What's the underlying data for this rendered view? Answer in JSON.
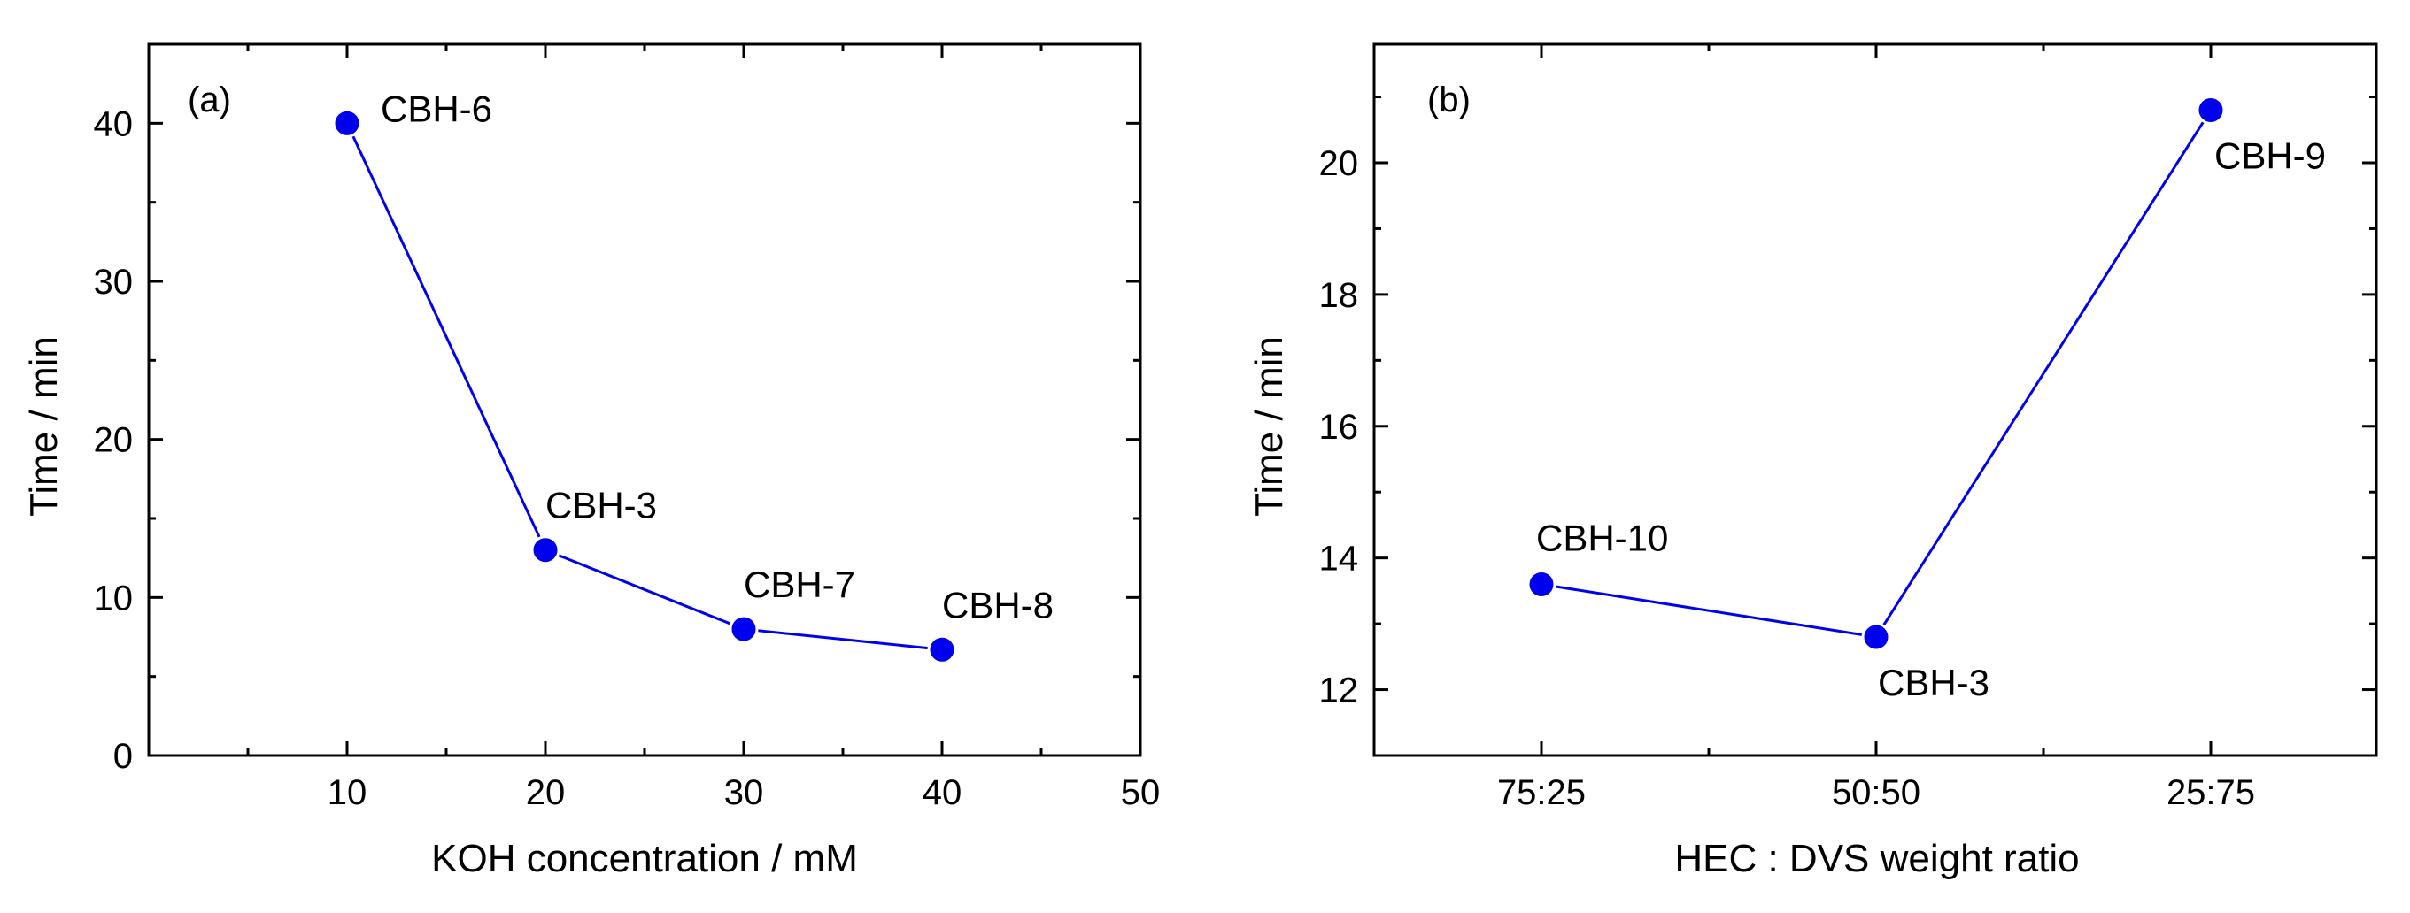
{
  "colors": {
    "series": "#0000ee",
    "axis": "#000000",
    "background": "#ffffff"
  },
  "chart_data": [
    {
      "type": "line",
      "panel_label": "(a)",
      "xlabel": "KOH concentration / mM",
      "ylabel": "Time / min",
      "xlim": [
        0,
        50
      ],
      "ylim": [
        0,
        45
      ],
      "xticks": [
        10,
        20,
        30,
        40,
        50
      ],
      "yticks": [
        0,
        10,
        20,
        30,
        40
      ],
      "x_minor_ticks": [
        5,
        15,
        25,
        35,
        45
      ],
      "y_minor_ticks": [
        5,
        15,
        25,
        35
      ],
      "grid": false,
      "x": [
        10,
        20,
        30,
        40
      ],
      "values": [
        40,
        13,
        8,
        6.7
      ],
      "point_labels": [
        "CBH-6",
        "CBH-3",
        "CBH-7",
        "CBH-8"
      ]
    },
    {
      "type": "line",
      "panel_label": "(b)",
      "xlabel": "HEC : DVS weight ratio",
      "ylabel": "Time / min",
      "categories": [
        "75:25",
        "50:50",
        "25:75"
      ],
      "ylim": [
        11,
        21.8
      ],
      "yticks": [
        12,
        14,
        16,
        18,
        20
      ],
      "y_minor_ticks": [
        11,
        13,
        15,
        17,
        19,
        21
      ],
      "grid": false,
      "values": [
        13.6,
        12.8,
        20.8
      ],
      "point_labels": [
        "CBH-10",
        "CBH-3",
        "CBH-9"
      ]
    }
  ]
}
